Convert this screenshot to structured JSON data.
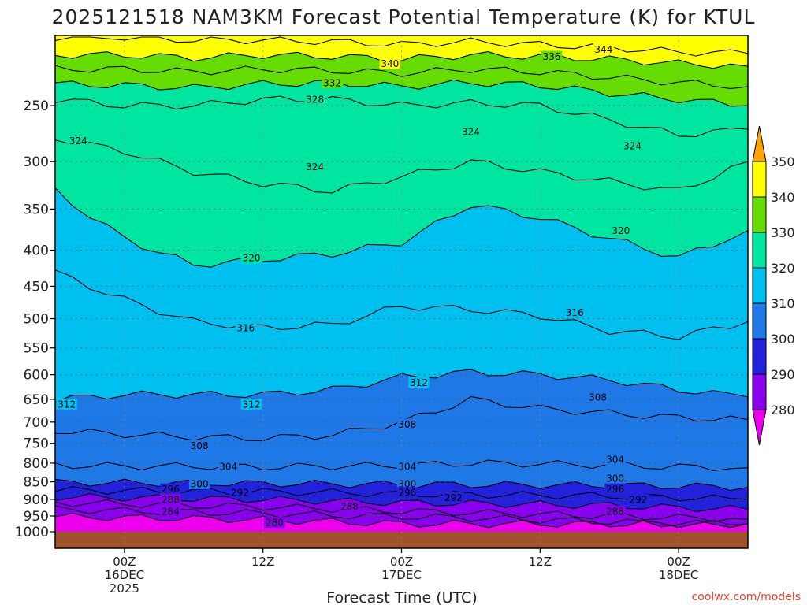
{
  "chart_data": {
    "type": "heatmap",
    "title": "2025121518 NAM3KM Forecast Potential Temperature (K) for KTUL",
    "xlabel": "Forecast Time (UTC)",
    "ylabel": "",
    "credit": "coolwx.com/models",
    "x_ticks": [
      {
        "lines": [
          "00Z",
          "16DEC",
          "2025"
        ],
        "hour": 6
      },
      {
        "lines": [
          "12Z"
        ],
        "hour": 18
      },
      {
        "lines": [
          "00Z",
          "17DEC"
        ],
        "hour": 30
      },
      {
        "lines": [
          "12Z"
        ],
        "hour": 42
      },
      {
        "lines": [
          "00Z",
          "18DEC"
        ],
        "hour": 54
      }
    ],
    "xlim_hours": [
      0,
      60
    ],
    "y_ticks": [
      250,
      300,
      350,
      400,
      450,
      500,
      550,
      600,
      650,
      700,
      750,
      800,
      850,
      900,
      950,
      1000
    ],
    "ylim_hpa": [
      200,
      1000
    ],
    "y_scale": "log-pressure",
    "grid": true,
    "colorbar": {
      "levels": [
        280,
        290,
        300,
        310,
        320,
        330,
        340,
        350
      ],
      "colors": [
        "#ee00ee",
        "#8800ee",
        "#2222dd",
        "#1e78e6",
        "#00c0f0",
        "#00e6a0",
        "#66dd00",
        "#ffff00",
        "#ffa500"
      ],
      "extend": "both",
      "position": "right"
    },
    "contour_levels": [
      280,
      284,
      288,
      292,
      296,
      300,
      304,
      308,
      312,
      316,
      320,
      324,
      328,
      332,
      336,
      340,
      344
    ],
    "contours": [
      {
        "level": 280,
        "p": [
          952,
          955,
          958,
          962,
          968,
          975,
          975,
          975,
          975,
          975,
          975
        ]
      },
      {
        "level": 284,
        "p": [
          930,
          934,
          938,
          942,
          948,
          952,
          956,
          962,
          968,
          975,
          975
        ]
      },
      {
        "level": 288,
        "p": [
          910,
          913,
          918,
          922,
          928,
          935,
          940,
          945,
          950,
          955,
          960
        ]
      },
      {
        "level": 292,
        "p": [
          893,
          895,
          898,
          900,
          905,
          910,
          912,
          915,
          918,
          925,
          930
        ]
      },
      {
        "level": 296,
        "p": [
          873,
          875,
          877,
          878,
          880,
          885,
          886,
          888,
          890,
          895,
          900
        ]
      },
      {
        "level": 300,
        "p": [
          852,
          853,
          853,
          855,
          856,
          857,
          858,
          859,
          860,
          862,
          865
        ]
      },
      {
        "level": 304,
        "p": [
          805,
          808,
          808,
          810,
          808,
          806,
          800,
          802,
          805,
          810,
          812
        ]
      },
      {
        "level": 308,
        "p": [
          720,
          728,
          735,
          738,
          730,
          700,
          650,
          670,
          680,
          690,
          695
        ]
      },
      {
        "level": 312,
        "p": [
          650,
          640,
          640,
          640,
          630,
          605,
          595,
          600,
          610,
          630,
          645
        ]
      },
      {
        "level": 316,
        "p": [
          430,
          470,
          505,
          515,
          510,
          480,
          485,
          495,
          520,
          530,
          505
        ]
      },
      {
        "level": 320,
        "p": [
          330,
          385,
          420,
          412,
          405,
          390,
          345,
          360,
          385,
          410,
          375
        ]
      },
      {
        "level": 324,
        "p": [
          278,
          290,
          310,
          322,
          330,
          315,
          300,
          310,
          320,
          330,
          300
        ]
      },
      {
        "level": 328,
        "p": [
          245,
          250,
          250,
          245,
          245,
          250,
          248,
          250,
          262,
          275,
          270
        ]
      },
      {
        "level": 332,
        "p": [
          233,
          234,
          236,
          233,
          232,
          235,
          232,
          234,
          240,
          245,
          250
        ]
      },
      {
        "level": 336,
        "p": [
          222,
          222,
          224,
          222,
          223,
          225,
          222,
          224,
          228,
          232,
          235
        ]
      },
      {
        "level": 340,
        "p": [
          212,
          212,
          214,
          212,
          213,
          215,
          212,
          213,
          215,
          218,
          220
        ]
      },
      {
        "level": 344,
        "p": [
          200,
          200,
          202,
          202,
          203,
          205,
          203,
          205,
          207,
          210,
          211
        ]
      }
    ],
    "contour_label_positions": [
      {
        "level": 340,
        "hour": 29.0,
        "p": 218
      },
      {
        "level": 336,
        "hour": 43.0,
        "p": 213
      },
      {
        "level": 344,
        "hour": 47.5,
        "p": 208
      },
      {
        "level": 332,
        "hour": 24.0,
        "p": 232
      },
      {
        "level": 328,
        "hour": 22.5,
        "p": 245
      },
      {
        "level": 324,
        "hour": 2.0,
        "p": 280
      },
      {
        "level": 324,
        "hour": 22.5,
        "p": 305
      },
      {
        "level": 324,
        "hour": 36.0,
        "p": 272
      },
      {
        "level": 324,
        "hour": 50.0,
        "p": 285
      },
      {
        "level": 320,
        "hour": 17.0,
        "p": 410
      },
      {
        "level": 320,
        "hour": 49.0,
        "p": 375
      },
      {
        "level": 316,
        "hour": 16.5,
        "p": 515
      },
      {
        "level": 316,
        "hour": 45.0,
        "p": 490
      },
      {
        "level": 312,
        "hour": 1.0,
        "p": 660
      },
      {
        "level": 312,
        "hour": 17.0,
        "p": 660
      },
      {
        "level": 312,
        "hour": 31.5,
        "p": 615
      },
      {
        "level": 308,
        "hour": 12.5,
        "p": 755
      },
      {
        "level": 308,
        "hour": 30.5,
        "p": 705
      },
      {
        "level": 308,
        "hour": 47.0,
        "p": 645
      },
      {
        "level": 304,
        "hour": 15.0,
        "p": 808
      },
      {
        "level": 304,
        "hour": 30.5,
        "p": 808
      },
      {
        "level": 304,
        "hour": 48.5,
        "p": 790
      },
      {
        "level": 300,
        "hour": 12.5,
        "p": 855
      },
      {
        "level": 300,
        "hour": 30.5,
        "p": 855
      },
      {
        "level": 300,
        "hour": 48.5,
        "p": 840
      },
      {
        "level": 296,
        "hour": 10.0,
        "p": 870
      },
      {
        "level": 296,
        "hour": 30.5,
        "p": 880
      },
      {
        "level": 296,
        "hour": 48.5,
        "p": 870
      },
      {
        "level": 292,
        "hour": 16.0,
        "p": 880
      },
      {
        "level": 292,
        "hour": 34.5,
        "p": 895
      },
      {
        "level": 292,
        "hour": 50.5,
        "p": 900
      },
      {
        "level": 288,
        "hour": 10.0,
        "p": 900
      },
      {
        "level": 288,
        "hour": 25.5,
        "p": 920
      },
      {
        "level": 288,
        "hour": 48.5,
        "p": 935
      },
      {
        "level": 284,
        "hour": 10.0,
        "p": 935
      },
      {
        "level": 280,
        "hour": 19.0,
        "p": 970
      }
    ],
    "ground_color": "#a0522d",
    "series": []
  }
}
